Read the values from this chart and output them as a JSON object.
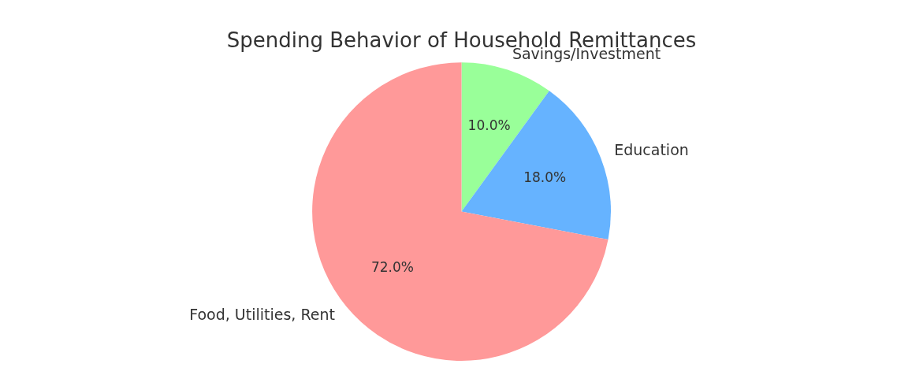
{
  "chart_data": {
    "type": "pie",
    "title": "Spending Behavior of Household Remittances",
    "categories": [
      "Savings/Investment",
      "Education",
      "Food, Utilities, Rent"
    ],
    "values": [
      10,
      18,
      72
    ],
    "colors": [
      "#99ff99",
      "#66b3ff",
      "#ff9999"
    ],
    "value_labels": [
      "10.0%",
      "18.0%",
      "72.0%"
    ],
    "legend": false
  }
}
